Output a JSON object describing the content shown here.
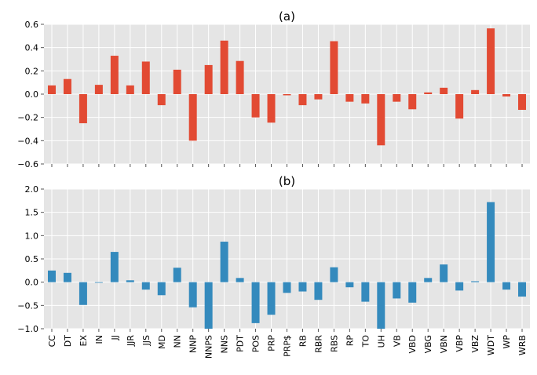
{
  "chart_data": [
    {
      "type": "bar",
      "title": "(a)",
      "color": "#E24A33",
      "ylim": [
        -0.6,
        0.6
      ],
      "yticks": [
        "0.6",
        "0.4",
        "0.2",
        "0.0",
        "−0.2",
        "−0.4",
        "−0.6"
      ],
      "ytick_values": [
        0.6,
        0.4,
        0.2,
        0.0,
        -0.2,
        -0.4,
        -0.6
      ],
      "categories": [
        "CC",
        "DT",
        "EX",
        "IN",
        "JJ",
        "JJR",
        "JJS",
        "MD",
        "NN",
        "NNP",
        "NNPS",
        "NNS",
        "PDT",
        "POS",
        "PRP",
        "PRP$",
        "RB",
        "RBR",
        "RBS",
        "RP",
        "TO",
        "UH",
        "VB",
        "VBD",
        "VBG",
        "VBN",
        "VBP",
        "VBZ",
        "WDT",
        "WP",
        "WRB"
      ],
      "values": [
        0.075,
        0.13,
        -0.25,
        0.08,
        0.33,
        0.075,
        0.28,
        -0.095,
        0.21,
        -0.4,
        0.25,
        0.46,
        0.285,
        -0.2,
        -0.245,
        -0.01,
        -0.095,
        -0.045,
        0.455,
        -0.065,
        -0.08,
        -0.44,
        -0.065,
        -0.13,
        0.015,
        0.055,
        -0.21,
        0.035,
        0.565,
        -0.02,
        -0.135
      ],
      "grid": true
    },
    {
      "type": "bar",
      "title": "(b)",
      "color": "#348ABD",
      "ylim": [
        -1.0,
        2.0
      ],
      "yticks": [
        "2.0",
        "1.5",
        "1.0",
        "0.5",
        "0.0",
        "−0.5",
        "−1.0"
      ],
      "ytick_values": [
        2.0,
        1.5,
        1.0,
        0.5,
        0.0,
        -0.5,
        -1.0
      ],
      "categories": [
        "CC",
        "DT",
        "EX",
        "IN",
        "JJ",
        "JJR",
        "JJS",
        "MD",
        "NN",
        "NNP",
        "NNPS",
        "NNS",
        "PDT",
        "POS",
        "PRP",
        "PRP$",
        "RB",
        "RBR",
        "RBS",
        "RP",
        "TO",
        "UH",
        "VB",
        "VBD",
        "VBG",
        "VBN",
        "VBP",
        "VBZ",
        "WDT",
        "WP",
        "WRB"
      ],
      "values": [
        0.25,
        0.2,
        -0.49,
        -0.01,
        0.65,
        0.04,
        -0.16,
        -0.28,
        0.31,
        -0.54,
        -1.0,
        0.87,
        0.09,
        -0.88,
        -0.7,
        -0.23,
        -0.2,
        -0.38,
        0.32,
        -0.11,
        -0.42,
        -1.0,
        -0.35,
        -0.44,
        0.09,
        0.38,
        -0.18,
        0.02,
        1.72,
        -0.16,
        -0.31
      ],
      "grid": true
    }
  ]
}
